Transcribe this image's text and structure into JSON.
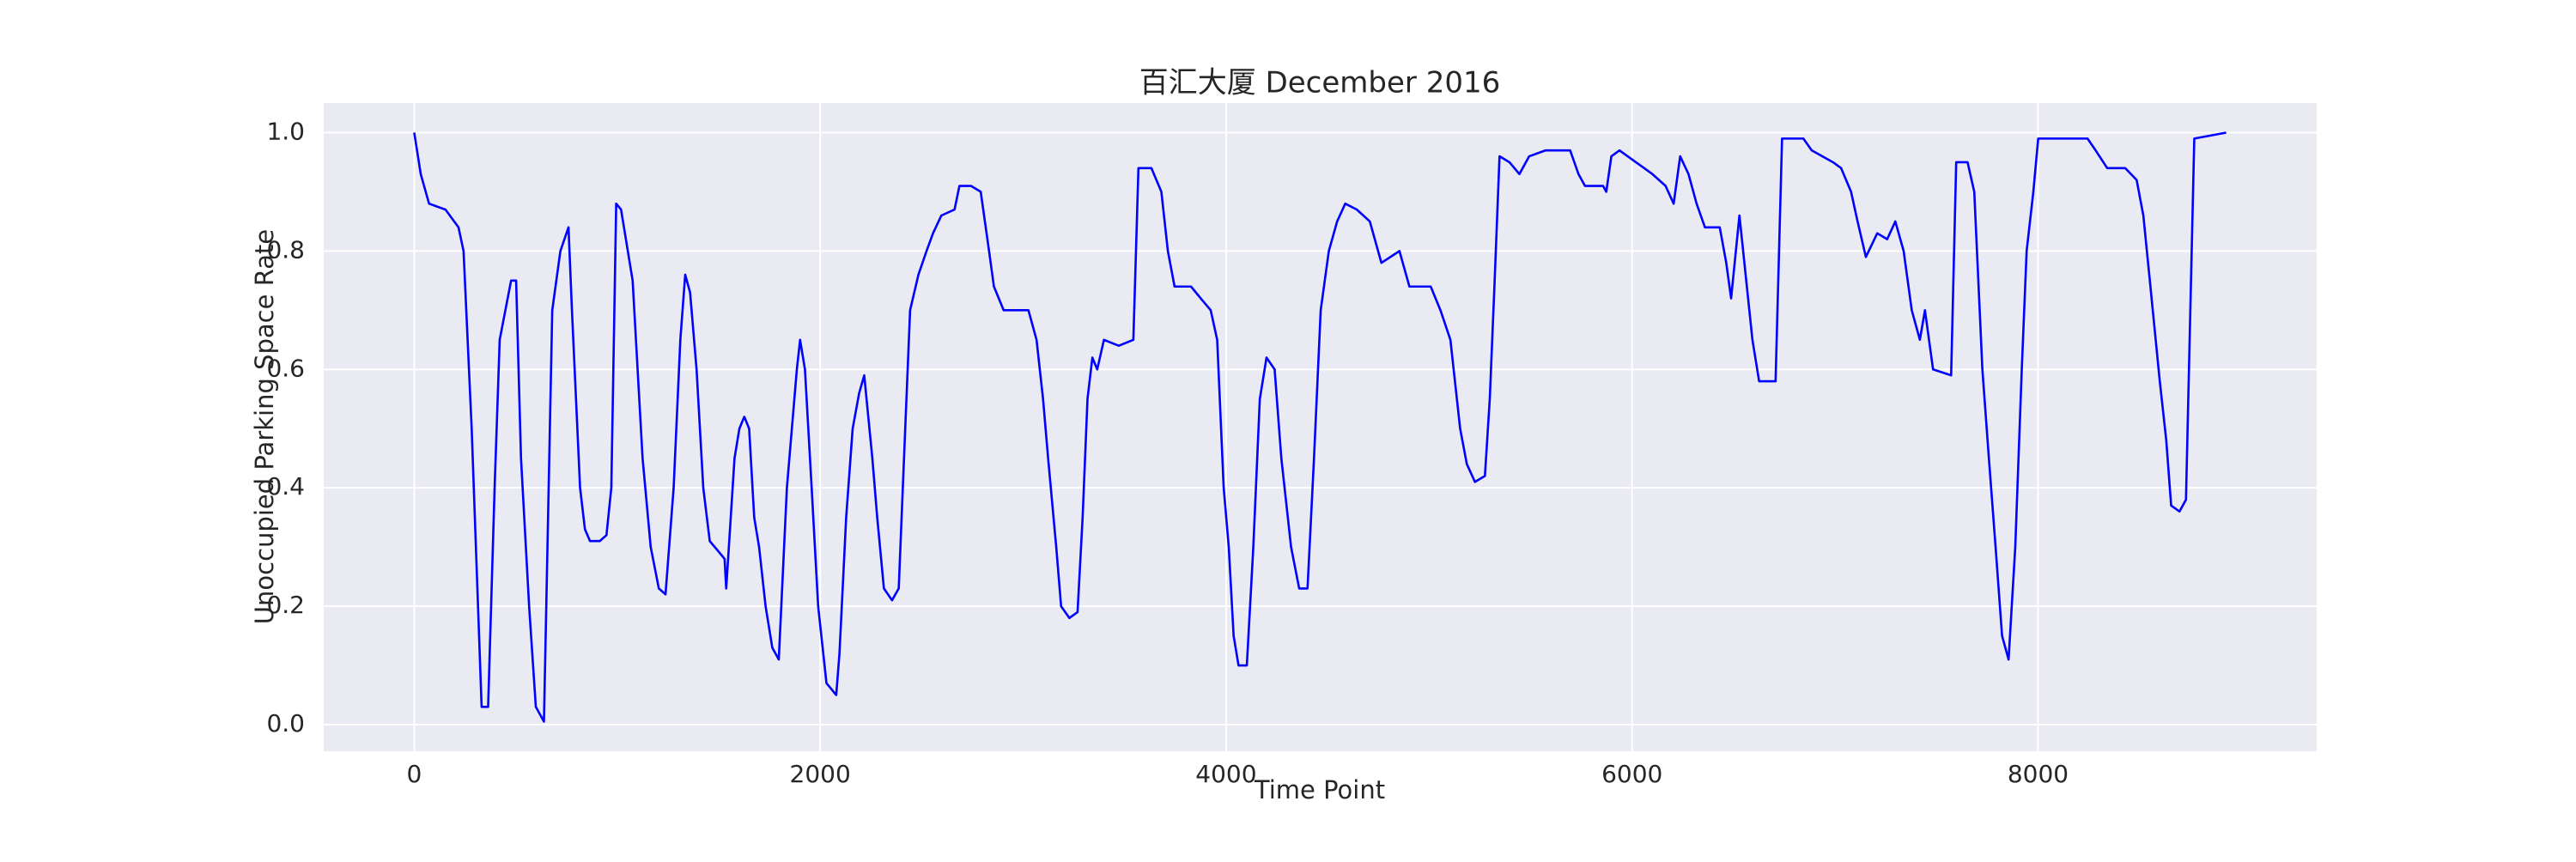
{
  "chart_data": {
    "type": "line",
    "title": "百汇大厦 December 2016",
    "x_label": "Time Point",
    "y_label": "Unoccupied Parking Space Rate",
    "xlim": [
      -446,
      9373
    ],
    "ylim": [
      -0.045,
      1.05
    ],
    "xticks": [
      0,
      2000,
      4000,
      6000,
      8000
    ],
    "yticks": [
      {
        "value": 0,
        "label": "0.0"
      },
      0.2,
      0.4,
      0.6,
      0.8,
      {
        "value": 1,
        "label": "1.0"
      }
    ],
    "grid": true,
    "background": "#eaeaf2",
    "series": [
      {
        "color": "#0000ff",
        "x": [
          0,
          32,
          73,
          154,
          218,
          243,
          283,
          332,
          364,
          396,
          421,
          477,
          502,
          526,
          566,
          599,
          639,
          680,
          720,
          760,
          777,
          817,
          841,
          866,
          914,
          947,
          971,
          995,
          1019,
          1076,
          1125,
          1165,
          1205,
          1238,
          1278,
          1311,
          1335,
          1359,
          1391,
          1424,
          1456,
          1505,
          1529,
          1537,
          1578,
          1602,
          1626,
          1650,
          1675,
          1699,
          1731,
          1764,
          1796,
          1836,
          1885,
          1901,
          1925,
          1958,
          1990,
          2031,
          2079,
          2095,
          2128,
          2160,
          2192,
          2217,
          2257,
          2281,
          2314,
          2354,
          2387,
          2419,
          2443,
          2484,
          2524,
          2556,
          2597,
          2662,
          2686,
          2743,
          2791,
          2832,
          2856,
          2904,
          3026,
          3066,
          3098,
          3123,
          3163,
          3187,
          3228,
          3268,
          3293,
          3317,
          3341,
          3365,
          3398,
          3471,
          3543,
          3568,
          3632,
          3681,
          3713,
          3746,
          3827,
          3875,
          3924,
          3956,
          3988,
          4013,
          4037,
          4061,
          4102,
          4134,
          4166,
          4199,
          4239,
          4272,
          4320,
          4360,
          4401,
          4433,
          4466,
          4506,
          4547,
          4587,
          4644,
          4708,
          4765,
          4854,
          4903,
          5008,
          5056,
          5105,
          5137,
          5153,
          5186,
          5226,
          5275,
          5299,
          5323,
          5347,
          5396,
          5445,
          5493,
          5574,
          5695,
          5736,
          5768,
          5857,
          5873,
          5898,
          5938,
          6019,
          6100,
          6165,
          6205,
          6237,
          6278,
          6318,
          6359,
          6432,
          6464,
          6488,
          6529,
          6593,
          6626,
          6707,
          6739,
          6844,
          6885,
          6990,
          7030,
          7079,
          7111,
          7152,
          7208,
          7257,
          7297,
          7338,
          7378,
          7418,
          7443,
          7483,
          7572,
          7597,
          7653,
          7686,
          7726,
          7758,
          7791,
          7823,
          7855,
          7888,
          7920,
          7944,
          7977,
          8001,
          8244,
          8284,
          8341,
          8430,
          8486,
          8519,
          8551,
          8600,
          8632,
          8656,
          8697,
          8729,
          8770,
          8927
        ],
        "values": [
          1.0,
          0.93,
          0.88,
          0.87,
          0.84,
          0.8,
          0.5,
          0.03,
          0.03,
          0.4,
          0.65,
          0.75,
          0.75,
          0.45,
          0.2,
          0.03,
          0.005,
          0.7,
          0.8,
          0.84,
          0.7,
          0.4,
          0.33,
          0.31,
          0.31,
          0.32,
          0.4,
          0.88,
          0.87,
          0.75,
          0.45,
          0.3,
          0.23,
          0.22,
          0.4,
          0.65,
          0.76,
          0.73,
          0.6,
          0.4,
          0.31,
          0.29,
          0.28,
          0.23,
          0.45,
          0.5,
          0.52,
          0.5,
          0.35,
          0.3,
          0.2,
          0.13,
          0.11,
          0.4,
          0.6,
          0.65,
          0.6,
          0.4,
          0.2,
          0.07,
          0.05,
          0.12,
          0.35,
          0.5,
          0.56,
          0.59,
          0.45,
          0.35,
          0.23,
          0.21,
          0.23,
          0.5,
          0.7,
          0.76,
          0.8,
          0.83,
          0.86,
          0.87,
          0.91,
          0.91,
          0.9,
          0.8,
          0.74,
          0.7,
          0.7,
          0.65,
          0.55,
          0.45,
          0.3,
          0.2,
          0.18,
          0.19,
          0.35,
          0.55,
          0.62,
          0.6,
          0.65,
          0.64,
          0.65,
          0.94,
          0.94,
          0.9,
          0.8,
          0.74,
          0.74,
          0.72,
          0.7,
          0.65,
          0.4,
          0.3,
          0.15,
          0.1,
          0.1,
          0.3,
          0.55,
          0.62,
          0.6,
          0.45,
          0.3,
          0.23,
          0.23,
          0.45,
          0.7,
          0.8,
          0.85,
          0.88,
          0.87,
          0.85,
          0.78,
          0.8,
          0.74,
          0.74,
          0.7,
          0.65,
          0.55,
          0.5,
          0.44,
          0.41,
          0.42,
          0.55,
          0.75,
          0.96,
          0.95,
          0.93,
          0.96,
          0.97,
          0.97,
          0.93,
          0.91,
          0.91,
          0.9,
          0.96,
          0.97,
          0.95,
          0.93,
          0.91,
          0.88,
          0.96,
          0.93,
          0.88,
          0.84,
          0.84,
          0.78,
          0.72,
          0.86,
          0.65,
          0.58,
          0.58,
          0.99,
          0.99,
          0.97,
          0.95,
          0.94,
          0.9,
          0.85,
          0.79,
          0.83,
          0.82,
          0.85,
          0.8,
          0.7,
          0.65,
          0.7,
          0.6,
          0.59,
          0.95,
          0.95,
          0.9,
          0.6,
          0.45,
          0.3,
          0.15,
          0.11,
          0.3,
          0.6,
          0.8,
          0.9,
          0.99,
          0.99,
          0.97,
          0.94,
          0.94,
          0.92,
          0.86,
          0.75,
          0.58,
          0.48,
          0.37,
          0.36,
          0.38,
          0.99,
          1.0
        ]
      }
    ]
  }
}
